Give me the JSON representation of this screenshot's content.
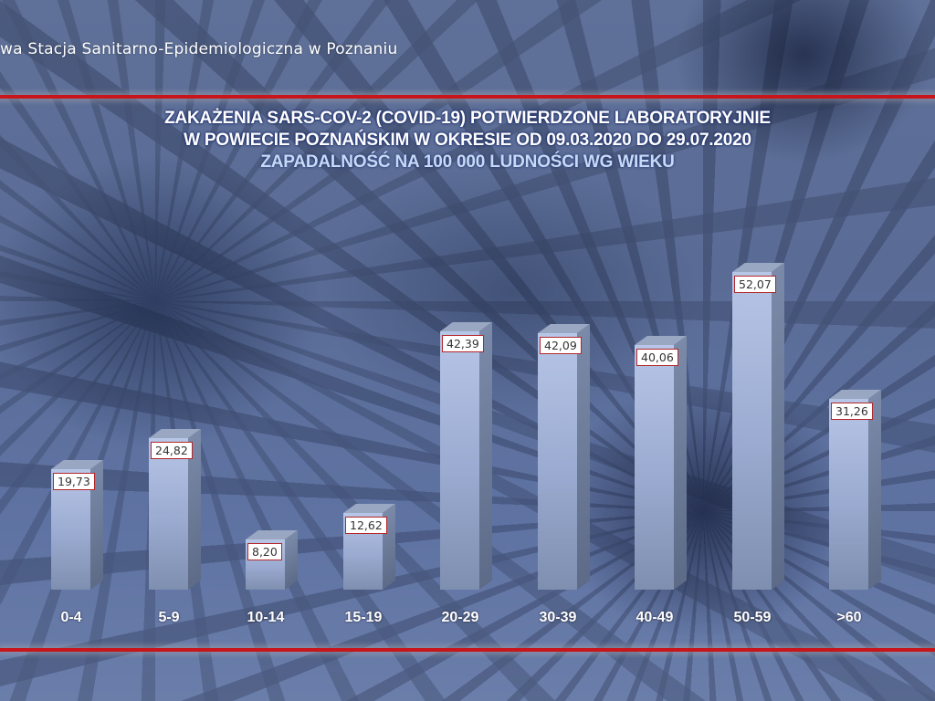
{
  "header": {
    "organization": "wa Stacja Sanitarno-Epidemiologiczna w Poznaniu"
  },
  "title": {
    "line1": "ZAKAŻENIA SARS-COV-2 (COVID-19) POTWIERDZONE LABORATORYJNIE",
    "line2": "W POWIECIE POZNAŃSKIM W OKRESIE OD 09.03.2020 DO 29.07.2020",
    "line3": "ZAPADALNOŚĆ NA 100 000 LUDNOŚCI WG WIEKU"
  },
  "colors": {
    "accent_line": "#c8151b",
    "label_border": "#b3262a",
    "subtitle": "#c6daf7"
  },
  "chart_data": {
    "type": "bar",
    "title": "ZAKAŻENIA SARS-COV-2 (COVID-19) POTWIERDZONE LABORATORYJNIE W POWIECIE POZNAŃSKIM W OKRESIE OD 09.03.2020 DO 29.07.2020",
    "subtitle": "ZAPADALNOŚĆ NA 100 000 LUDNOŚCI WG WIEKU",
    "xlabel": "",
    "ylabel": "",
    "categories": [
      "0-4",
      "5-9",
      "10-14",
      "15-19",
      "20-29",
      "30-39",
      "40-49",
      "50-59",
      ">60"
    ],
    "values": [
      19.73,
      24.82,
      8.2,
      12.62,
      42.39,
      42.09,
      40.06,
      52.07,
      31.26
    ],
    "value_labels": [
      "19,73",
      "24,82",
      "8,20",
      "12,62",
      "42,39",
      "42,09",
      "40,06",
      "52,07",
      "31,26"
    ],
    "grid": false,
    "legend": "none",
    "style": "3d-columns"
  }
}
